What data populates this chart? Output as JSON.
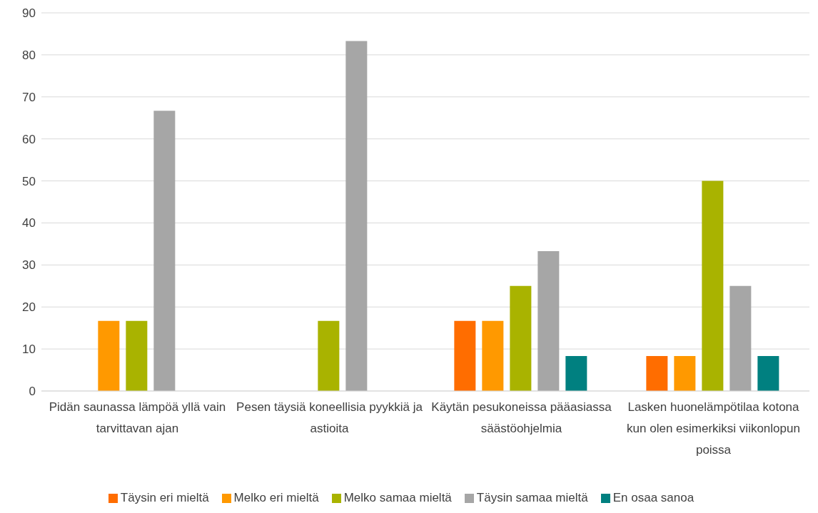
{
  "chart_data": {
    "type": "bar",
    "categories": [
      "Pidän saunassa lämpöä yllä vain tarvittavan ajan",
      "Pesen täysiä koneellisia pyykkiä ja astioita",
      "Käytän pesukoneissa pääasiassa säästöohjelmia",
      "Lasken huonelämpötilaa kotona kun olen esimerkiksi viikonlopun poissa"
    ],
    "series": [
      {
        "name": "Täysin eri mieltä",
        "color": "#ff6d00",
        "values": [
          0,
          0,
          16.7,
          8.3
        ]
      },
      {
        "name": "Melko eri mieltä",
        "color": "#ff9900",
        "values": [
          16.7,
          0,
          16.7,
          8.3
        ]
      },
      {
        "name": "Melko samaa mieltä",
        "color": "#a9b300",
        "values": [
          16.7,
          16.7,
          25,
          50
        ]
      },
      {
        "name": "Täysin samaa mieltä",
        "color": "#a6a6a6",
        "values": [
          66.7,
          83.3,
          33.3,
          25
        ]
      },
      {
        "name": "En osaa sanoa",
        "color": "#008080",
        "values": [
          0,
          0,
          8.3,
          8.3
        ]
      }
    ],
    "ylim": [
      0,
      90
    ],
    "yticks": [
      0,
      10,
      20,
      30,
      40,
      50,
      60,
      70,
      80,
      90
    ],
    "grid": "y",
    "legend": "bottom"
  }
}
